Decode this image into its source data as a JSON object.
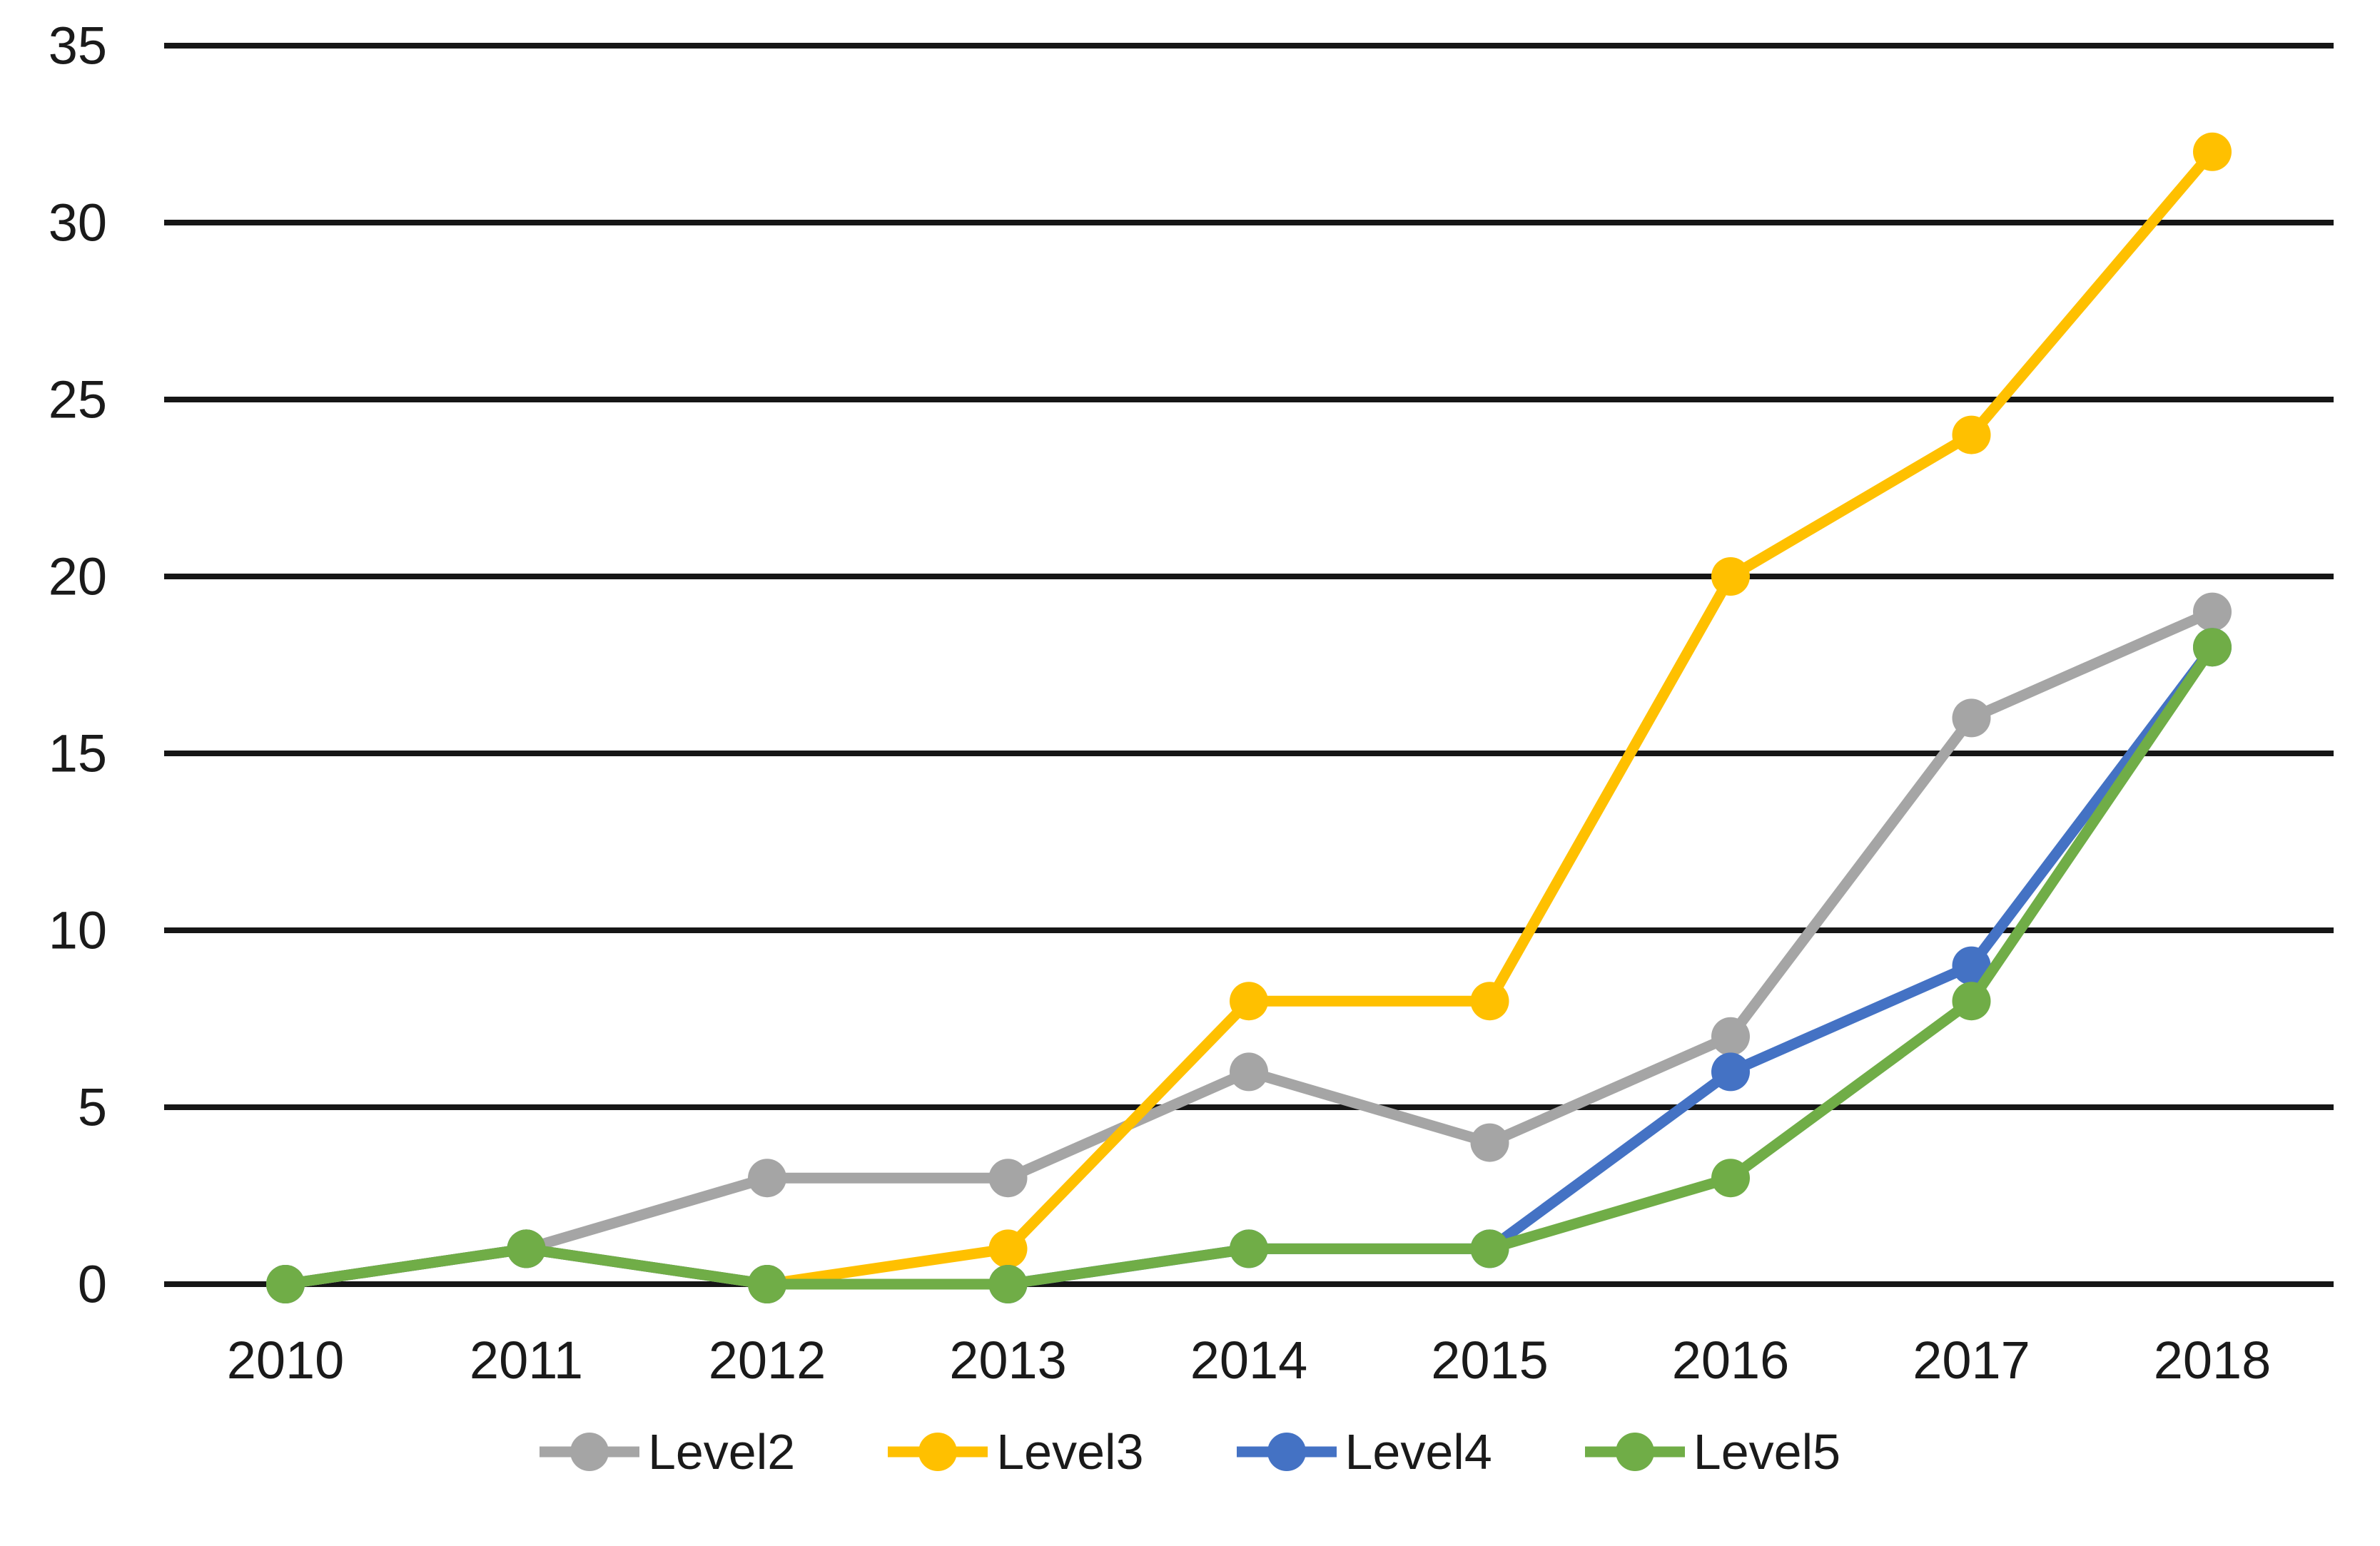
{
  "chart_data": {
    "type": "line",
    "title": "",
    "xlabel": "",
    "ylabel": "",
    "categories": [
      "2010",
      "2011",
      "2012",
      "2013",
      "2014",
      "2015",
      "2016",
      "2017",
      "2018"
    ],
    "series": [
      {
        "name": "Level2",
        "color": "#A5A5A5",
        "values": [
          0,
          1,
          3,
          3,
          6,
          4,
          7,
          16,
          19
        ]
      },
      {
        "name": "Level3",
        "color": "#FFC000",
        "values": [
          0,
          1,
          0,
          1,
          8,
          8,
          20,
          24,
          32
        ]
      },
      {
        "name": "Level4",
        "color": "#4472C4",
        "values": [
          0,
          1,
          0,
          0,
          1,
          1,
          6,
          9,
          18
        ]
      },
      {
        "name": "Level5",
        "color": "#70AD47",
        "values": [
          0,
          1,
          0,
          0,
          1,
          1,
          3,
          8,
          18
        ]
      }
    ],
    "ylim": [
      0,
      35
    ],
    "yticks": [
      0,
      5,
      10,
      15,
      20,
      25,
      30,
      35
    ],
    "grid": true,
    "gridline_color": "#161616",
    "axis_text_color": "#1a1a1a",
    "legend_position": "bottom",
    "marker": "circle"
  }
}
